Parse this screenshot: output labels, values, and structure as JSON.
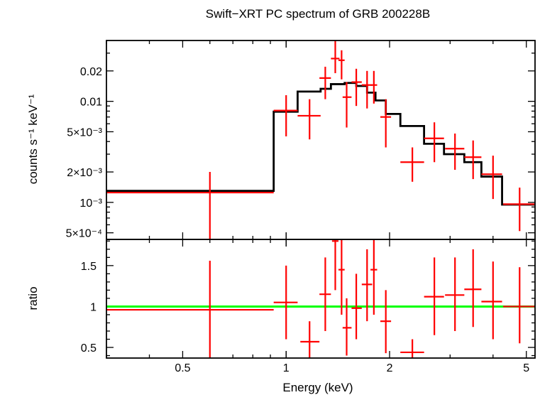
{
  "chart_data": [
    {
      "type": "scatter",
      "title": "Swift−XRT PC spectrum of GRB 200228B",
      "xlabel": "",
      "ylabel": "counts s⁻¹ keV⁻¹",
      "xscale": "log",
      "yscale": "log",
      "xlim": [
        0.3,
        5.3
      ],
      "ylim": [
        0.00043,
        0.04
      ],
      "yticks": [
        {
          "value": 0.0005,
          "label": "5×10⁻⁴"
        },
        {
          "value": 0.001,
          "label": "10⁻³"
        },
        {
          "value": 0.002,
          "label": "2×10⁻³"
        },
        {
          "value": 0.005,
          "label": "5×10⁻³"
        },
        {
          "value": 0.01,
          "label": "0.01"
        },
        {
          "value": 0.02,
          "label": "0.02"
        }
      ],
      "data_color": "#ff0000",
      "model_color": "#000000",
      "data": [
        {
          "x": 0.6,
          "xlo": 0.3,
          "xhi": 0.92,
          "y": 0.00125,
          "ylo": 0.00043,
          "yhi": 0.002
        },
        {
          "x": 1.0,
          "xlo": 0.92,
          "xhi": 1.08,
          "y": 0.0081,
          "ylo": 0.0045,
          "yhi": 0.0115
        },
        {
          "x": 1.17,
          "xlo": 1.08,
          "xhi": 1.26,
          "y": 0.0072,
          "ylo": 0.0042,
          "yhi": 0.0105
        },
        {
          "x": 1.3,
          "xlo": 1.25,
          "xhi": 1.35,
          "y": 0.017,
          "ylo": 0.0105,
          "yhi": 0.022
        },
        {
          "x": 1.39,
          "xlo": 1.35,
          "xhi": 1.43,
          "y": 0.0265,
          "ylo": 0.019,
          "yhi": 0.04
        },
        {
          "x": 1.45,
          "xlo": 1.42,
          "xhi": 1.48,
          "y": 0.0255,
          "ylo": 0.0165,
          "yhi": 0.032
        },
        {
          "x": 1.5,
          "xlo": 1.46,
          "xhi": 1.55,
          "y": 0.011,
          "ylo": 0.0055,
          "yhi": 0.0155
        },
        {
          "x": 1.6,
          "xlo": 1.55,
          "xhi": 1.66,
          "y": 0.0155,
          "ylo": 0.009,
          "yhi": 0.021
        },
        {
          "x": 1.72,
          "xlo": 1.66,
          "xhi": 1.78,
          "y": 0.0145,
          "ylo": 0.0085,
          "yhi": 0.02
        },
        {
          "x": 1.8,
          "xlo": 1.76,
          "xhi": 1.84,
          "y": 0.0145,
          "ylo": 0.0095,
          "yhi": 0.02
        },
        {
          "x": 1.95,
          "xlo": 1.88,
          "xhi": 2.02,
          "y": 0.007,
          "ylo": 0.0035,
          "yhi": 0.0105
        },
        {
          "x": 2.33,
          "xlo": 2.15,
          "xhi": 2.52,
          "y": 0.0025,
          "ylo": 0.0016,
          "yhi": 0.0035
        },
        {
          "x": 2.7,
          "xlo": 2.52,
          "xhi": 2.88,
          "y": 0.0043,
          "ylo": 0.0025,
          "yhi": 0.0062
        },
        {
          "x": 3.1,
          "xlo": 2.9,
          "xhi": 3.3,
          "y": 0.0034,
          "ylo": 0.0021,
          "yhi": 0.0048
        },
        {
          "x": 3.5,
          "xlo": 3.3,
          "xhi": 3.7,
          "y": 0.0028,
          "ylo": 0.0017,
          "yhi": 0.0041
        },
        {
          "x": 4.0,
          "xlo": 3.7,
          "xhi": 4.25,
          "y": 0.0019,
          "ylo": 0.00108,
          "yhi": 0.0029
        },
        {
          "x": 4.78,
          "xlo": 4.28,
          "xhi": 5.3,
          "y": 0.00096,
          "ylo": 0.00052,
          "yhi": 0.0014
        }
      ],
      "model": {
        "edges": [
          0.3,
          0.92,
          1.08,
          1.26,
          1.35,
          1.48,
          1.6,
          1.72,
          1.82,
          1.95,
          2.15,
          2.52,
          2.88,
          3.3,
          3.7,
          4.25,
          5.3
        ],
        "values": [
          0.0013,
          0.0079,
          0.0125,
          0.0133,
          0.0148,
          0.0152,
          0.0142,
          0.0122,
          0.0102,
          0.0075,
          0.0057,
          0.0038,
          0.003,
          0.0025,
          0.0018,
          0.00095
        ]
      }
    },
    {
      "type": "scatter",
      "xlabel": "Energy (keV)",
      "ylabel": "ratio",
      "xscale": "log",
      "yscale": "linear",
      "xlim": [
        0.3,
        5.3
      ],
      "ylim": [
        0.37,
        1.82
      ],
      "xticks": [
        {
          "value": 0.5,
          "label": "0.5"
        },
        {
          "value": 1,
          "label": "1"
        },
        {
          "value": 2,
          "label": "2"
        },
        {
          "value": 5,
          "label": "5"
        }
      ],
      "yticks": [
        {
          "value": 0.5,
          "label": "0.5"
        },
        {
          "value": 1,
          "label": "1"
        },
        {
          "value": 1.5,
          "label": "1.5"
        }
      ],
      "reference_line": 1,
      "reference_color": "#00ff00",
      "data_color": "#ff0000",
      "data": [
        {
          "x": 0.6,
          "xlo": 0.3,
          "xhi": 0.92,
          "y": 0.96,
          "ylo": 0.37,
          "yhi": 1.56
        },
        {
          "x": 1.0,
          "xlo": 0.92,
          "xhi": 1.08,
          "y": 1.05,
          "ylo": 0.6,
          "yhi": 1.5
        },
        {
          "x": 1.17,
          "xlo": 1.1,
          "xhi": 1.25,
          "y": 0.57,
          "ylo": 0.37,
          "yhi": 0.82
        },
        {
          "x": 1.3,
          "xlo": 1.25,
          "xhi": 1.35,
          "y": 1.15,
          "ylo": 0.7,
          "yhi": 1.6
        },
        {
          "x": 1.39,
          "xlo": 1.36,
          "xhi": 1.42,
          "y": 1.8,
          "ylo": 1.2,
          "yhi": 1.82
        },
        {
          "x": 1.45,
          "xlo": 1.42,
          "xhi": 1.48,
          "y": 1.45,
          "ylo": 0.9,
          "yhi": 1.82
        },
        {
          "x": 1.5,
          "xlo": 1.46,
          "xhi": 1.55,
          "y": 0.74,
          "ylo": 0.4,
          "yhi": 1.1
        },
        {
          "x": 1.6,
          "xlo": 1.55,
          "xhi": 1.66,
          "y": 0.98,
          "ylo": 0.6,
          "yhi": 1.4
        },
        {
          "x": 1.72,
          "xlo": 1.66,
          "xhi": 1.78,
          "y": 1.27,
          "ylo": 0.82,
          "yhi": 1.7
        },
        {
          "x": 1.8,
          "xlo": 1.76,
          "xhi": 1.84,
          "y": 1.45,
          "ylo": 0.9,
          "yhi": 1.82
        },
        {
          "x": 1.95,
          "xlo": 1.88,
          "xhi": 2.02,
          "y": 0.82,
          "ylo": 0.43,
          "yhi": 1.2
        },
        {
          "x": 2.33,
          "xlo": 2.15,
          "xhi": 2.52,
          "y": 0.44,
          "ylo": 0.37,
          "yhi": 0.6
        },
        {
          "x": 2.7,
          "xlo": 2.52,
          "xhi": 2.88,
          "y": 1.12,
          "ylo": 0.65,
          "yhi": 1.6
        },
        {
          "x": 3.1,
          "xlo": 2.9,
          "xhi": 3.3,
          "y": 1.14,
          "ylo": 0.7,
          "yhi": 1.6
        },
        {
          "x": 3.5,
          "xlo": 3.3,
          "xhi": 3.7,
          "y": 1.21,
          "ylo": 0.75,
          "yhi": 1.7
        },
        {
          "x": 4.0,
          "xlo": 3.7,
          "xhi": 4.25,
          "y": 1.06,
          "ylo": 0.6,
          "yhi": 1.55
        },
        {
          "x": 4.78,
          "xlo": 4.28,
          "xhi": 5.3,
          "y": 1.0,
          "ylo": 0.55,
          "yhi": 1.48
        }
      ]
    }
  ]
}
